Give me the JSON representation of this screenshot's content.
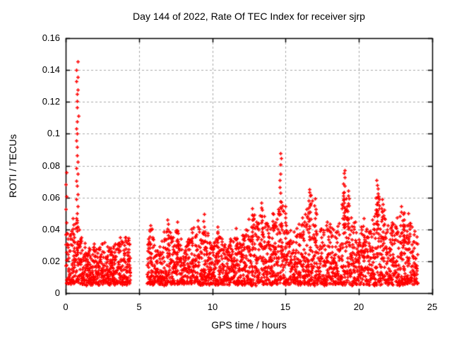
{
  "page": {
    "background": "#ffffff",
    "text_color": "#000000"
  },
  "chart_data": {
    "type": "scatter",
    "title": "Day 144 of 2022, Rate Of TEC Index for receiver sjrp",
    "xlabel": "GPS time / hours",
    "ylabel": "ROTI / TECUs",
    "xlim": [
      0,
      25
    ],
    "ylim": [
      0,
      0.16
    ],
    "xticks": {
      "values": [
        0,
        5,
        10,
        15,
        20,
        25
      ],
      "labels": [
        "0",
        "5",
        "10",
        "15",
        "20",
        "25"
      ]
    },
    "yticks": {
      "values": [
        0,
        0.02,
        0.04,
        0.06,
        0.08,
        0.1,
        0.12,
        0.14,
        0.16
      ],
      "labels": [
        "0",
        "0.02",
        "0.04",
        "0.06",
        "0.08",
        "0.1",
        "0.12",
        "0.14",
        "0.16"
      ]
    },
    "grid": {
      "show": true,
      "color": "#a9a9a9",
      "dash": [
        3,
        3
      ]
    },
    "frame_color": "#000000",
    "marker": {
      "shape": "plus",
      "color": "#ff0000",
      "size": 5,
      "stroke": 1.5
    },
    "series_name": "ROTI",
    "time_coverage_hours": [
      [
        0.0,
        4.4
      ],
      [
        5.55,
        24.0
      ]
    ],
    "noise_floor": 0.005,
    "sample_step_hours": 0.02,
    "seed": 144,
    "envelope": [
      [
        0.0,
        0.04
      ],
      [
        0.25,
        0.034
      ],
      [
        0.5,
        0.041
      ],
      [
        0.8,
        0.046
      ],
      [
        1.05,
        0.036
      ],
      [
        1.3,
        0.03
      ],
      [
        1.6,
        0.028
      ],
      [
        1.9,
        0.031
      ],
      [
        2.2,
        0.028
      ],
      [
        2.5,
        0.032
      ],
      [
        2.8,
        0.029
      ],
      [
        3.1,
        0.027
      ],
      [
        3.4,
        0.031
      ],
      [
        3.7,
        0.034
      ],
      [
        4.0,
        0.037
      ],
      [
        4.4,
        0.034
      ],
      [
        5.55,
        0.036
      ],
      [
        5.8,
        0.043
      ],
      [
        6.1,
        0.027
      ],
      [
        6.5,
        0.03
      ],
      [
        6.9,
        0.046
      ],
      [
        7.2,
        0.034
      ],
      [
        7.6,
        0.043
      ],
      [
        8.0,
        0.028
      ],
      [
        8.4,
        0.034
      ],
      [
        8.7,
        0.04
      ],
      [
        9.0,
        0.05
      ],
      [
        9.3,
        0.038
      ],
      [
        9.55,
        0.046
      ],
      [
        9.8,
        0.032
      ],
      [
        10.1,
        0.03
      ],
      [
        10.4,
        0.042
      ],
      [
        10.7,
        0.032
      ],
      [
        11.0,
        0.028
      ],
      [
        11.3,
        0.034
      ],
      [
        11.6,
        0.04
      ],
      [
        11.9,
        0.032
      ],
      [
        12.2,
        0.038
      ],
      [
        12.5,
        0.046
      ],
      [
        12.75,
        0.052
      ],
      [
        13.0,
        0.043
      ],
      [
        13.35,
        0.056
      ],
      [
        13.6,
        0.047
      ],
      [
        13.9,
        0.041
      ],
      [
        14.15,
        0.05
      ],
      [
        14.4,
        0.047
      ],
      [
        14.65,
        0.062
      ],
      [
        14.9,
        0.052
      ],
      [
        15.15,
        0.044
      ],
      [
        15.45,
        0.037
      ],
      [
        15.75,
        0.041
      ],
      [
        16.05,
        0.045
      ],
      [
        16.35,
        0.051
      ],
      [
        16.65,
        0.062
      ],
      [
        16.95,
        0.057
      ],
      [
        17.25,
        0.045
      ],
      [
        17.55,
        0.039
      ],
      [
        17.85,
        0.044
      ],
      [
        18.15,
        0.041
      ],
      [
        18.45,
        0.039
      ],
      [
        18.7,
        0.05
      ],
      [
        19.0,
        0.068
      ],
      [
        19.3,
        0.059
      ],
      [
        19.6,
        0.047
      ],
      [
        19.9,
        0.041
      ],
      [
        20.2,
        0.047
      ],
      [
        20.5,
        0.039
      ],
      [
        20.8,
        0.043
      ],
      [
        21.1,
        0.056
      ],
      [
        21.35,
        0.065
      ],
      [
        21.6,
        0.056
      ],
      [
        21.9,
        0.049
      ],
      [
        22.2,
        0.043
      ],
      [
        22.5,
        0.045
      ],
      [
        22.8,
        0.053
      ],
      [
        23.1,
        0.053
      ],
      [
        23.4,
        0.045
      ],
      [
        23.7,
        0.039
      ],
      [
        24.0,
        0.034
      ]
    ],
    "spike_columns": [
      {
        "x": 0.03,
        "ymin": 0.03,
        "ymax": 0.076,
        "n": 7,
        "xj": 0.04
      },
      {
        "x": 0.55,
        "ymin": 0.028,
        "ymax": 0.047,
        "n": 6,
        "xj": 0.05
      },
      {
        "x": 0.78,
        "ymin": 0.042,
        "ymax": 0.1445,
        "n": 26,
        "xj": 0.07
      },
      {
        "x": 5.75,
        "ymin": 0.02,
        "ymax": 0.043,
        "n": 7,
        "xj": 0.06
      },
      {
        "x": 7.0,
        "ymin": 0.024,
        "ymax": 0.047,
        "n": 7,
        "xj": 0.05
      },
      {
        "x": 7.62,
        "ymin": 0.02,
        "ymax": 0.044,
        "n": 6,
        "xj": 0.05
      },
      {
        "x": 8.6,
        "ymin": 0.02,
        "ymax": 0.04,
        "n": 5,
        "xj": 0.05
      },
      {
        "x": 9.45,
        "ymin": 0.024,
        "ymax": 0.05,
        "n": 7,
        "xj": 0.05
      },
      {
        "x": 10.35,
        "ymin": 0.02,
        "ymax": 0.042,
        "n": 6,
        "xj": 0.05
      },
      {
        "x": 11.6,
        "ymin": 0.02,
        "ymax": 0.04,
        "n": 5,
        "xj": 0.05
      },
      {
        "x": 12.72,
        "ymin": 0.028,
        "ymax": 0.0525,
        "n": 8,
        "xj": 0.05
      },
      {
        "x": 13.35,
        "ymin": 0.03,
        "ymax": 0.056,
        "n": 8,
        "xj": 0.06
      },
      {
        "x": 14.1,
        "ymin": 0.025,
        "ymax": 0.05,
        "n": 6,
        "xj": 0.05
      },
      {
        "x": 14.63,
        "ymin": 0.05,
        "ymax": 0.0885,
        "n": 10,
        "xj": 0.05
      },
      {
        "x": 15.0,
        "ymin": 0.03,
        "ymax": 0.055,
        "n": 6,
        "xj": 0.04
      },
      {
        "x": 16.62,
        "ymin": 0.04,
        "ymax": 0.066,
        "n": 12,
        "xj": 0.06
      },
      {
        "x": 17.0,
        "ymin": 0.03,
        "ymax": 0.06,
        "n": 8,
        "xj": 0.06
      },
      {
        "x": 18.97,
        "ymin": 0.038,
        "ymax": 0.0775,
        "n": 16,
        "xj": 0.08
      },
      {
        "x": 19.25,
        "ymin": 0.035,
        "ymax": 0.065,
        "n": 8,
        "xj": 0.05
      },
      {
        "x": 20.3,
        "ymin": 0.02,
        "ymax": 0.047,
        "n": 6,
        "xj": 0.05
      },
      {
        "x": 21.25,
        "ymin": 0.038,
        "ymax": 0.0705,
        "n": 14,
        "xj": 0.08
      },
      {
        "x": 21.6,
        "ymin": 0.03,
        "ymax": 0.06,
        "n": 8,
        "xj": 0.06
      },
      {
        "x": 22.85,
        "ymin": 0.025,
        "ymax": 0.055,
        "n": 6,
        "xj": 0.05
      },
      {
        "x": 23.05,
        "ymin": 0.025,
        "ymax": 0.05,
        "n": 8,
        "xj": 0.06
      },
      {
        "x": 23.35,
        "ymin": 0.02,
        "ymax": 0.0495,
        "n": 5,
        "xj": 0.04
      }
    ]
  }
}
